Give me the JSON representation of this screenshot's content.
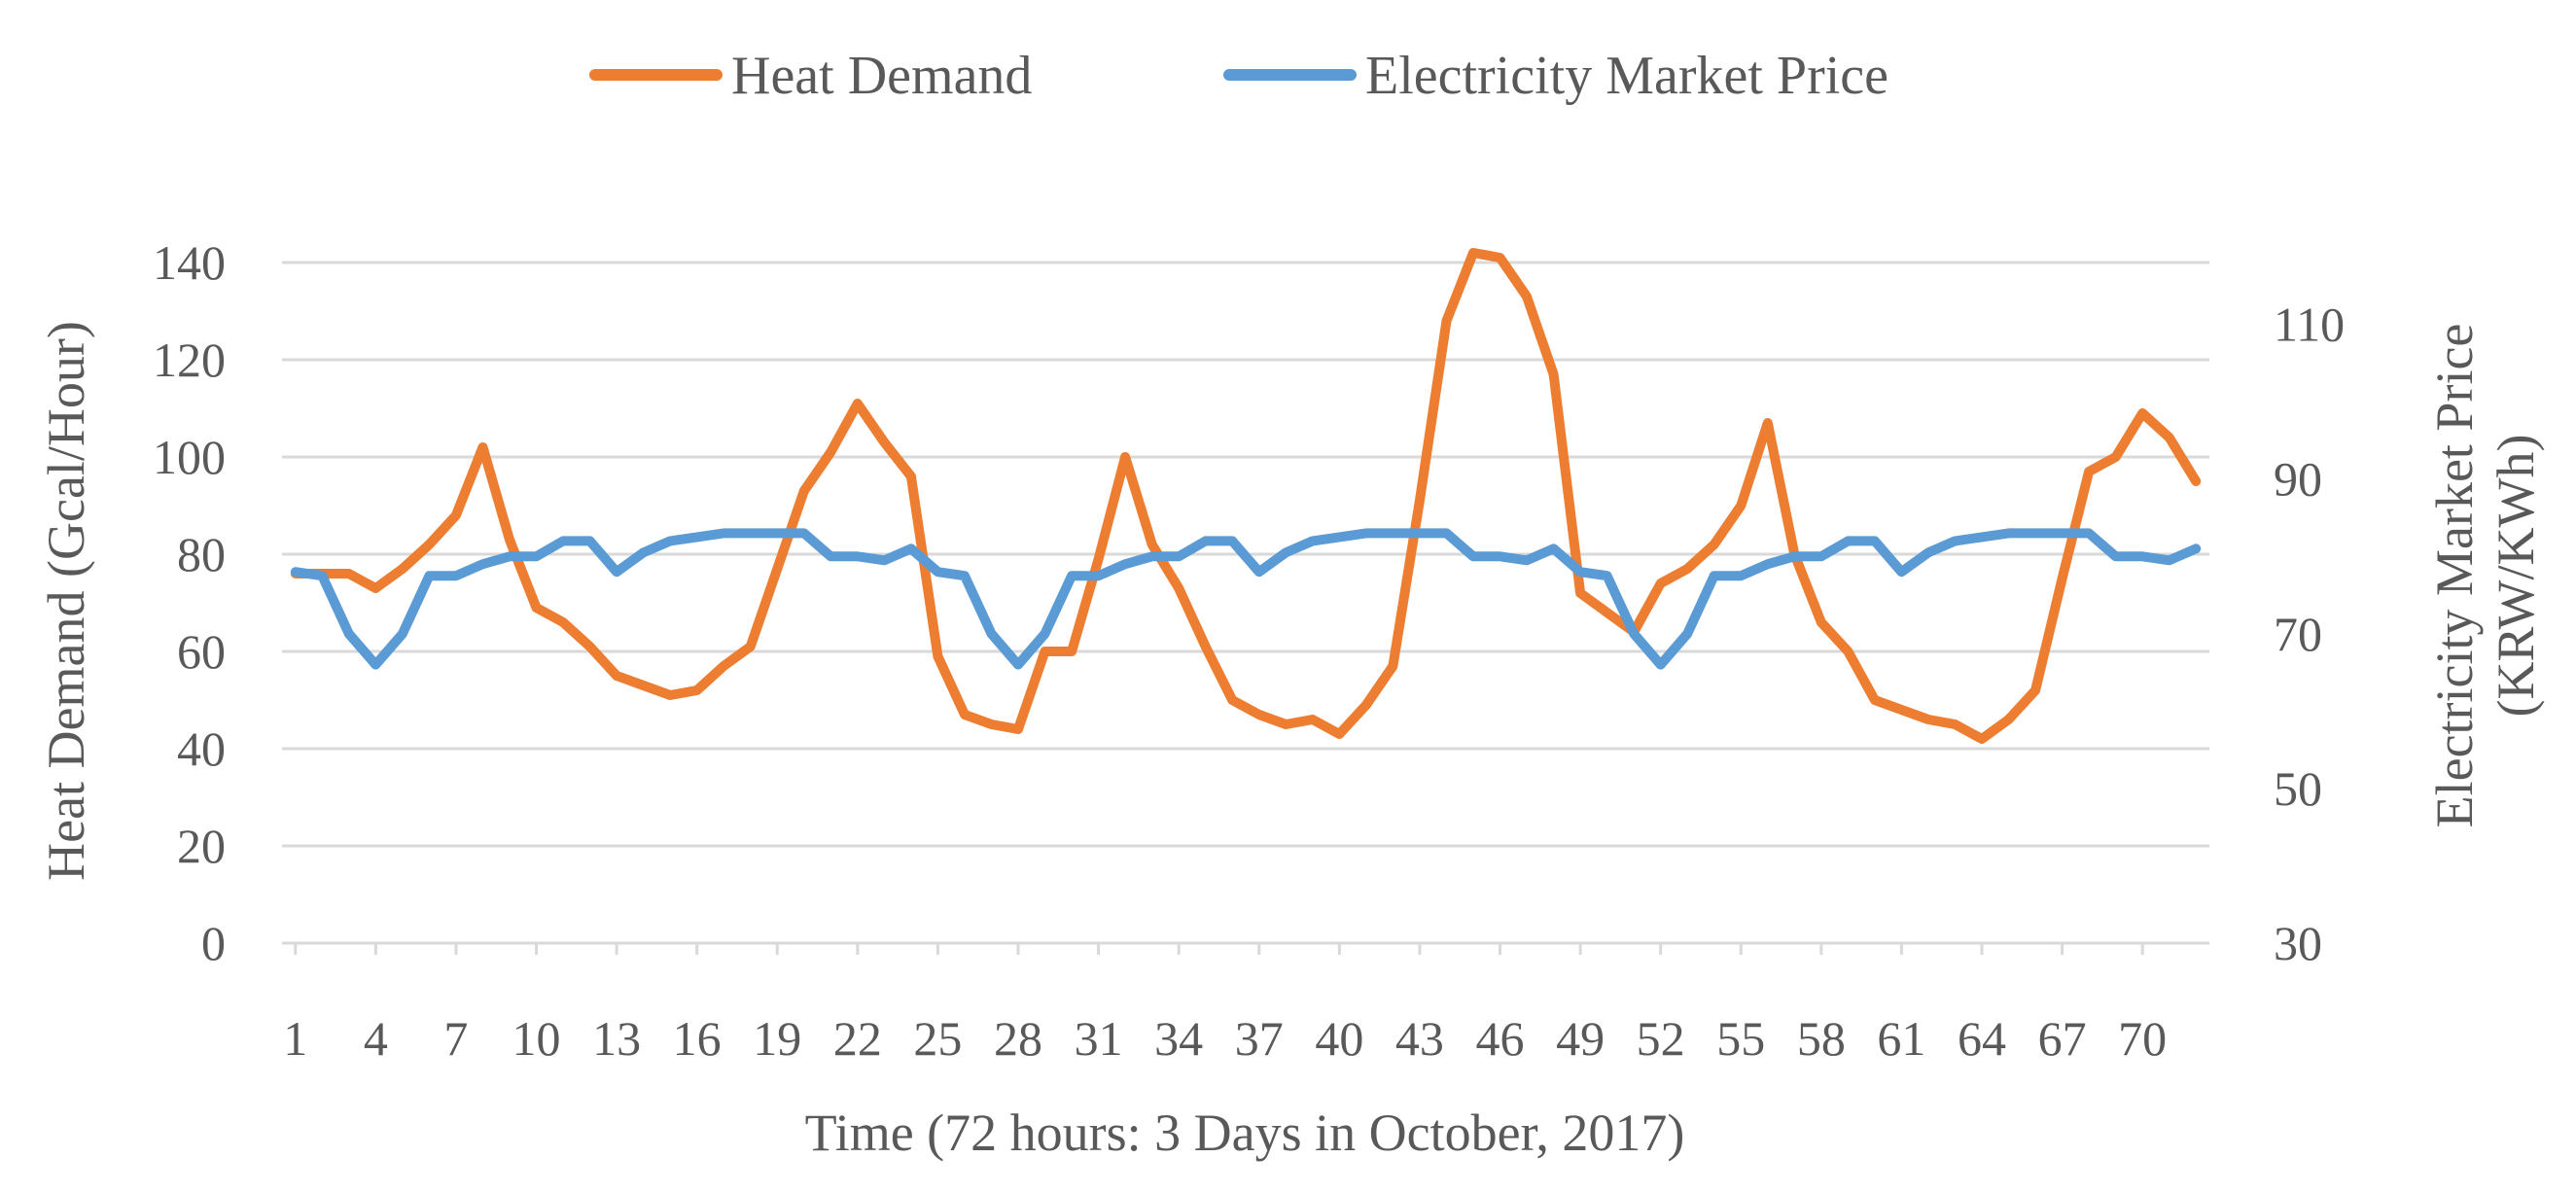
{
  "chart_data": {
    "type": "line",
    "title": "",
    "xlabel": "Time (72 hours: 3 Days in October, 2017)",
    "ylabel": "Heat Demand (Gcal/Hour)",
    "y2label_line1": "Electricity Market Price",
    "y2label_line2": "(KRW/KWh)",
    "ylim": [
      0,
      140
    ],
    "y2lim": [
      30,
      118
    ],
    "y_ticks": [
      "0",
      "20",
      "40",
      "60",
      "80",
      "100",
      "120",
      "140"
    ],
    "y2_ticks": [
      "30",
      "50",
      "70",
      "90",
      "110"
    ],
    "x_ticks": [
      "1",
      "4",
      "7",
      "10",
      "13",
      "16",
      "19",
      "22",
      "25",
      "28",
      "31",
      "34",
      "37",
      "40",
      "43",
      "46",
      "49",
      "52",
      "55",
      "58",
      "61",
      "64",
      "67",
      "70"
    ],
    "legend_position": "top-center",
    "grid": true,
    "x": [
      1,
      2,
      3,
      4,
      5,
      6,
      7,
      8,
      9,
      10,
      11,
      12,
      13,
      14,
      15,
      16,
      17,
      18,
      19,
      20,
      21,
      22,
      23,
      24,
      25,
      26,
      27,
      28,
      29,
      30,
      31,
      32,
      33,
      34,
      35,
      36,
      37,
      38,
      39,
      40,
      41,
      42,
      43,
      44,
      45,
      46,
      47,
      48,
      49,
      50,
      51,
      52,
      53,
      54,
      55,
      56,
      57,
      58,
      59,
      60,
      61,
      62,
      63,
      64,
      65,
      66,
      67,
      68,
      69,
      70,
      71,
      72
    ],
    "series": [
      {
        "name": "Heat Demand",
        "axis": "left",
        "color": "#ed7d31",
        "values": [
          76,
          76,
          76,
          73,
          77,
          82,
          88,
          102,
          83,
          69,
          66,
          61,
          55,
          53,
          51,
          52,
          57,
          61,
          77,
          93,
          101,
          111,
          103,
          96,
          59,
          47,
          45,
          44,
          60,
          60,
          79,
          100,
          82,
          73,
          61,
          50,
          47,
          45,
          46,
          43,
          49,
          57,
          91,
          128,
          142,
          141,
          133,
          117,
          72,
          68,
          64,
          74,
          77,
          82,
          90,
          107,
          80,
          66,
          60,
          50,
          48,
          46,
          45,
          42,
          46,
          52,
          75,
          97,
          100,
          109,
          104,
          95
        ]
      },
      {
        "name": "Electricity Market Price",
        "axis": "right",
        "color": "#5b9bd5",
        "values": [
          78,
          77.5,
          70,
          66,
          70,
          77.5,
          77.5,
          79,
          80,
          80,
          82,
          82,
          78,
          80.5,
          82,
          82.5,
          83,
          83,
          83,
          83,
          80,
          80,
          79.5,
          81,
          78,
          77.5,
          70,
          66,
          70,
          77.5,
          77.5,
          79,
          80,
          80,
          82,
          82,
          78,
          80.5,
          82,
          82.5,
          83,
          83,
          83,
          83,
          80,
          80,
          79.5,
          81,
          78,
          77.5,
          70,
          66,
          70,
          77.5,
          77.5,
          79,
          80,
          80,
          82,
          82,
          78,
          80.5,
          82,
          82.5,
          83,
          83,
          83,
          83,
          80,
          80,
          79.5,
          81
        ]
      }
    ]
  }
}
